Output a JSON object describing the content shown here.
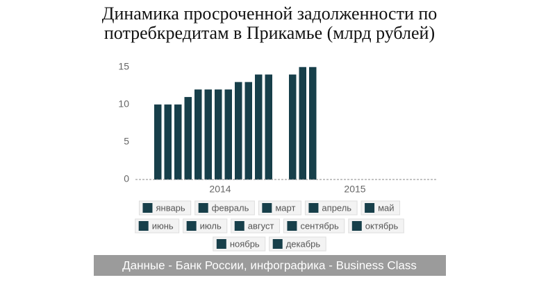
{
  "chart_data": {
    "type": "bar",
    "title": [
      "Динамика просроченной задолженности по",
      "потребкредитам в Прикамье (млрд рублей)"
    ],
    "categories": [
      "2014",
      "2015"
    ],
    "series": [
      {
        "name": "январь",
        "color": "#173f4a",
        "values": [
          10,
          14
        ]
      },
      {
        "name": "февраль",
        "color": "#173f4a",
        "values": [
          10,
          15
        ]
      },
      {
        "name": "март",
        "color": "#173f4a",
        "values": [
          10,
          15
        ]
      },
      {
        "name": "апрель",
        "color": "#173f4a",
        "values": [
          11,
          0
        ]
      },
      {
        "name": "май",
        "color": "#173f4a",
        "values": [
          12,
          0
        ]
      },
      {
        "name": "июнь",
        "color": "#173f4a",
        "values": [
          12,
          0
        ]
      },
      {
        "name": "июль",
        "color": "#173f4a",
        "values": [
          12,
          0
        ]
      },
      {
        "name": "август",
        "color": "#173f4a",
        "values": [
          12,
          0
        ]
      },
      {
        "name": "сентябрь",
        "color": "#173f4a",
        "values": [
          13,
          0
        ]
      },
      {
        "name": "октябрь",
        "color": "#173f4a",
        "values": [
          13,
          0
        ]
      },
      {
        "name": "ноябрь",
        "color": "#173f4a",
        "values": [
          14,
          0
        ]
      },
      {
        "name": "декабрь",
        "color": "#173f4a",
        "values": [
          14,
          0
        ]
      }
    ],
    "ylim": [
      0,
      15
    ],
    "yticks": [
      0,
      5,
      10,
      15
    ],
    "grid": false,
    "source": "Данные - Банк России, инфографика - Business Class"
  }
}
